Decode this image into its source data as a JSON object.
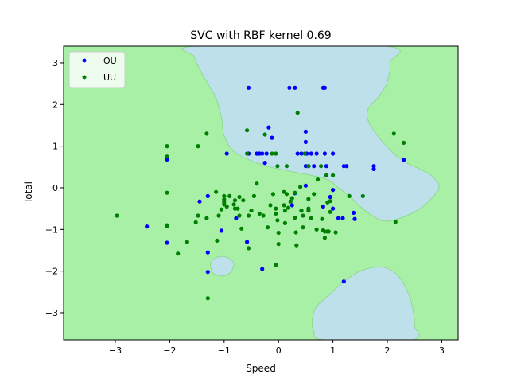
{
  "chart_data": {
    "type": "scatter",
    "title": "SVC with RBF kernel 0.69",
    "xlabel": "Speed",
    "ylabel": "Total",
    "xlim": [
      -3.95,
      3.3
    ],
    "ylim": [
      -3.65,
      3.4
    ],
    "xticks": [
      -3,
      -2,
      -1,
      0,
      1,
      2,
      3
    ],
    "yticks": [
      -3,
      -2,
      -1,
      0,
      1,
      2,
      3
    ],
    "grid": false,
    "legend_position": "top-left",
    "background_region_color": "#a8f0a6",
    "decision_region_color": "#bde0eb",
    "decision_edge_color": "#8fd98f",
    "decision_regions": [
      [
        [
          -1.5,
          3.4
        ],
        [
          1.95,
          3.4
        ],
        [
          2.05,
          3.0
        ],
        [
          2.0,
          2.55
        ],
        [
          1.85,
          2.2
        ],
        [
          1.65,
          1.9
        ],
        [
          1.65,
          1.6
        ],
        [
          1.85,
          1.2
        ],
        [
          2.1,
          0.85
        ],
        [
          2.35,
          0.6
        ],
        [
          2.6,
          0.45
        ],
        [
          2.8,
          0.3
        ],
        [
          2.95,
          0.05
        ],
        [
          2.85,
          -0.2
        ],
        [
          2.6,
          -0.5
        ],
        [
          2.3,
          -0.7
        ],
        [
          1.95,
          -0.8
        ],
        [
          1.7,
          -0.65
        ],
        [
          1.5,
          -0.45
        ],
        [
          1.3,
          -0.2
        ],
        [
          1.1,
          0.0
        ],
        [
          0.9,
          0.2
        ],
        [
          0.6,
          0.3
        ],
        [
          0.2,
          0.4
        ],
        [
          -0.3,
          0.55
        ],
        [
          -0.8,
          0.85
        ],
        [
          -1.0,
          1.25
        ],
        [
          -1.05,
          1.7
        ],
        [
          -1.15,
          2.15
        ],
        [
          -1.3,
          2.5
        ],
        [
          -1.45,
          2.85
        ],
        [
          -1.55,
          3.15
        ]
      ],
      [
        [
          -1.05,
          -1.65
        ],
        [
          -0.9,
          -1.7
        ],
        [
          -0.82,
          -1.85
        ],
        [
          -0.9,
          -2.05
        ],
        [
          -1.05,
          -2.12
        ],
        [
          -1.2,
          -2.05
        ],
        [
          -1.25,
          -1.85
        ],
        [
          -1.18,
          -1.7
        ]
      ],
      [
        [
          0.85,
          -3.65
        ],
        [
          2.45,
          -3.65
        ],
        [
          2.5,
          -3.3
        ],
        [
          2.45,
          -2.8
        ],
        [
          2.3,
          -2.3
        ],
        [
          2.1,
          -2.0
        ],
        [
          1.85,
          -1.9
        ],
        [
          1.5,
          -2.0
        ],
        [
          1.2,
          -2.25
        ],
        [
          0.95,
          -2.55
        ],
        [
          0.7,
          -2.85
        ],
        [
          0.62,
          -3.15
        ],
        [
          0.65,
          -3.45
        ]
      ]
    ],
    "series": [
      {
        "name": "OU",
        "color": "#0000ff",
        "points": [
          [
            -2.42,
            -0.93
          ],
          [
            -2.05,
            -1.32
          ],
          [
            -2.05,
            0.68
          ],
          [
            -1.45,
            -0.33
          ],
          [
            -1.3,
            -0.2
          ],
          [
            -1.3,
            -1.55
          ],
          [
            -1.3,
            -2.02
          ],
          [
            -1.05,
            -1.03
          ],
          [
            -0.95,
            0.82
          ],
          [
            -0.78,
            -0.73
          ],
          [
            -0.58,
            -1.3
          ],
          [
            -0.55,
            2.4
          ],
          [
            -0.55,
            0.82
          ],
          [
            -0.4,
            0.82
          ],
          [
            -0.35,
            0.82
          ],
          [
            -0.3,
            0.82
          ],
          [
            -0.25,
            0.6
          ],
          [
            -0.22,
            0.82
          ],
          [
            -0.18,
            1.45
          ],
          [
            -0.12,
            1.2
          ],
          [
            -0.3,
            -1.95
          ],
          [
            0.2,
            2.4
          ],
          [
            0.3,
            2.4
          ],
          [
            0.35,
            0.82
          ],
          [
            0.42,
            0.82
          ],
          [
            0.5,
            1.35
          ],
          [
            0.5,
            1.1
          ],
          [
            0.52,
            0.82
          ],
          [
            0.5,
            0.52
          ],
          [
            0.5,
            0.05
          ],
          [
            0.55,
            0.52
          ],
          [
            0.6,
            0.82
          ],
          [
            0.65,
            0.52
          ],
          [
            0.7,
            0.82
          ],
          [
            0.82,
            2.4
          ],
          [
            0.85,
            2.4
          ],
          [
            0.85,
            0.82
          ],
          [
            0.88,
            0.52
          ],
          [
            0.3,
            -0.13
          ],
          [
            0.25,
            -0.42
          ],
          [
            0.42,
            -0.55
          ],
          [
            0.95,
            -0.22
          ],
          [
            1.0,
            0.82
          ],
          [
            1.0,
            -0.05
          ],
          [
            1.0,
            -0.5
          ],
          [
            1.1,
            -0.73
          ],
          [
            1.18,
            -0.73
          ],
          [
            1.2,
            0.52
          ],
          [
            1.25,
            0.52
          ],
          [
            1.38,
            -0.6
          ],
          [
            1.4,
            -0.75
          ],
          [
            1.75,
            0.52
          ],
          [
            1.75,
            0.45
          ],
          [
            2.3,
            0.67
          ],
          [
            1.2,
            -2.25
          ],
          [
            0.82,
            -0.45
          ]
        ]
      },
      {
        "name": "UU",
        "color": "#008000",
        "points": [
          [
            -2.97,
            -0.67
          ],
          [
            -2.05,
            1.0
          ],
          [
            -2.05,
            0.75
          ],
          [
            -2.05,
            -0.12
          ],
          [
            -2.05,
            -0.92
          ],
          [
            -2.05,
            -0.9
          ],
          [
            -1.85,
            -1.58
          ],
          [
            -1.68,
            -1.3
          ],
          [
            -1.52,
            -0.83
          ],
          [
            -1.48,
            -0.67
          ],
          [
            -1.48,
            1.0
          ],
          [
            -1.32,
            1.3
          ],
          [
            -1.32,
            -0.73
          ],
          [
            -1.3,
            -2.65
          ],
          [
            -1.15,
            -0.1
          ],
          [
            -1.13,
            -1.27
          ],
          [
            -1.1,
            -0.67
          ],
          [
            -1.05,
            -0.52
          ],
          [
            -1.0,
            -0.2
          ],
          [
            -1.0,
            -0.28
          ],
          [
            -1.0,
            -0.35
          ],
          [
            -1.0,
            -0.4
          ],
          [
            -0.95,
            -0.45
          ],
          [
            -0.9,
            -0.2
          ],
          [
            -0.82,
            -0.4
          ],
          [
            -0.8,
            -0.3
          ],
          [
            -0.75,
            -0.5
          ],
          [
            -0.72,
            -0.67
          ],
          [
            -0.68,
            -0.98
          ],
          [
            -0.65,
            -0.3
          ],
          [
            -0.58,
            1.38
          ],
          [
            -0.58,
            0.82
          ],
          [
            -0.55,
            -0.67
          ],
          [
            -0.55,
            -1.45
          ],
          [
            -0.5,
            -0.55
          ],
          [
            -0.45,
            -0.2
          ],
          [
            -0.4,
            0.1
          ],
          [
            -0.35,
            -0.62
          ],
          [
            -0.28,
            -0.67
          ],
          [
            -0.25,
            1.28
          ],
          [
            -0.2,
            -0.95
          ],
          [
            -0.15,
            -0.42
          ],
          [
            -0.12,
            0.82
          ],
          [
            -0.1,
            -0.15
          ],
          [
            -0.05,
            -0.5
          ],
          [
            -0.05,
            -0.62
          ],
          [
            -0.05,
            0.82
          ],
          [
            -0.02,
            0.52
          ],
          [
            -0.02,
            -0.78
          ],
          [
            0.0,
            -1.08
          ],
          [
            0.0,
            -1.35
          ],
          [
            -0.05,
            -1.85
          ],
          [
            0.1,
            -0.42
          ],
          [
            0.12,
            -0.55
          ],
          [
            0.12,
            -0.85
          ],
          [
            0.15,
            0.52
          ],
          [
            0.15,
            -0.15
          ],
          [
            0.18,
            -0.48
          ],
          [
            0.22,
            -0.33
          ],
          [
            0.25,
            -0.25
          ],
          [
            0.3,
            -0.12
          ],
          [
            0.3,
            -0.72
          ],
          [
            0.32,
            -1.07
          ],
          [
            0.33,
            -1.38
          ],
          [
            0.35,
            1.8
          ],
          [
            0.4,
            0.02
          ],
          [
            0.42,
            -0.55
          ],
          [
            0.45,
            -0.67
          ],
          [
            0.45,
            -0.95
          ],
          [
            0.48,
            0.82
          ],
          [
            0.55,
            0.52
          ],
          [
            0.55,
            -0.27
          ],
          [
            0.55,
            -0.5
          ],
          [
            0.55,
            -0.55
          ],
          [
            0.6,
            -0.73
          ],
          [
            0.65,
            -0.15
          ],
          [
            0.7,
            -1.0
          ],
          [
            0.72,
            0.2
          ],
          [
            0.78,
            0.52
          ],
          [
            0.8,
            -0.75
          ],
          [
            0.82,
            -1.02
          ],
          [
            0.85,
            -1.05
          ],
          [
            0.85,
            -1.2
          ],
          [
            0.88,
            0.3
          ],
          [
            0.9,
            -1.05
          ],
          [
            0.92,
            -1.05
          ],
          [
            0.95,
            -0.32
          ],
          [
            1.0,
            0.3
          ],
          [
            1.05,
            -1.07
          ],
          [
            1.3,
            -0.2
          ],
          [
            1.55,
            -0.2
          ],
          [
            2.12,
            1.3
          ],
          [
            2.15,
            -0.82
          ],
          [
            2.3,
            1.08
          ],
          [
            0.95,
            -0.58
          ],
          [
            0.9,
            -0.35
          ],
          [
            -0.72,
            -0.22
          ],
          [
            -0.8,
            -0.5
          ],
          [
            0.1,
            -0.1
          ]
        ]
      }
    ]
  }
}
